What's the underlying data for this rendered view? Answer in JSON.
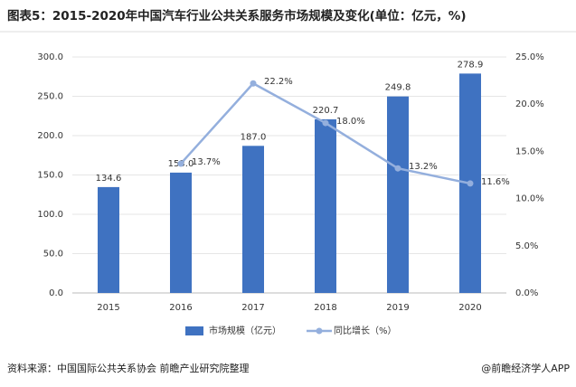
{
  "chart_data": {
    "type": "bar_line",
    "title": "图表5：2015-2020年中国汽车行业公共关系服务市场规模及变化(单位：亿元，%)",
    "categories": [
      "2015",
      "2016",
      "2017",
      "2018",
      "2019",
      "2020"
    ],
    "series": [
      {
        "name": "市场规模（亿元）",
        "color": "#3f72c1",
        "type": "bar",
        "values": [
          134.6,
          153.0,
          187.0,
          220.7,
          249.8,
          278.9
        ],
        "value_labels": [
          "134.6",
          "153.0",
          "187.0",
          "220.7",
          "249.8",
          "278.9"
        ]
      },
      {
        "name": "同比增长（%）",
        "color": "#94afdd",
        "type": "line",
        "axis": "y2",
        "values": [
          null,
          13.7,
          22.2,
          18.0,
          13.2,
          11.6
        ],
        "value_labels": [
          null,
          "13.7%",
          "22.2%",
          "18.0%",
          "13.2%",
          "11.6%"
        ]
      }
    ],
    "ylim": [
      0,
      300
    ],
    "yticks": [
      {
        "value": 0,
        "label": "0.0"
      },
      {
        "value": 50,
        "label": "50.0"
      },
      {
        "value": 100,
        "label": "100.0"
      },
      {
        "value": 150,
        "label": "150.0"
      },
      {
        "value": 200,
        "label": "200.0"
      },
      {
        "value": 250,
        "label": "250.0"
      },
      {
        "value": 300,
        "label": "300.0"
      }
    ],
    "y2lim": [
      0,
      25
    ],
    "y2ticks": [
      {
        "value": 0,
        "label": "0.0%"
      },
      {
        "value": 5,
        "label": "5.0%"
      },
      {
        "value": 10,
        "label": "10.0%"
      },
      {
        "value": 15,
        "label": "15.0%"
      },
      {
        "value": 20,
        "label": "20.0%"
      },
      {
        "value": 25,
        "label": "25.0%"
      }
    ],
    "source": "资料来源：中国国际公共关系协会 前瞻产业研究院整理",
    "credit": "@前瞻经济学人APP"
  }
}
